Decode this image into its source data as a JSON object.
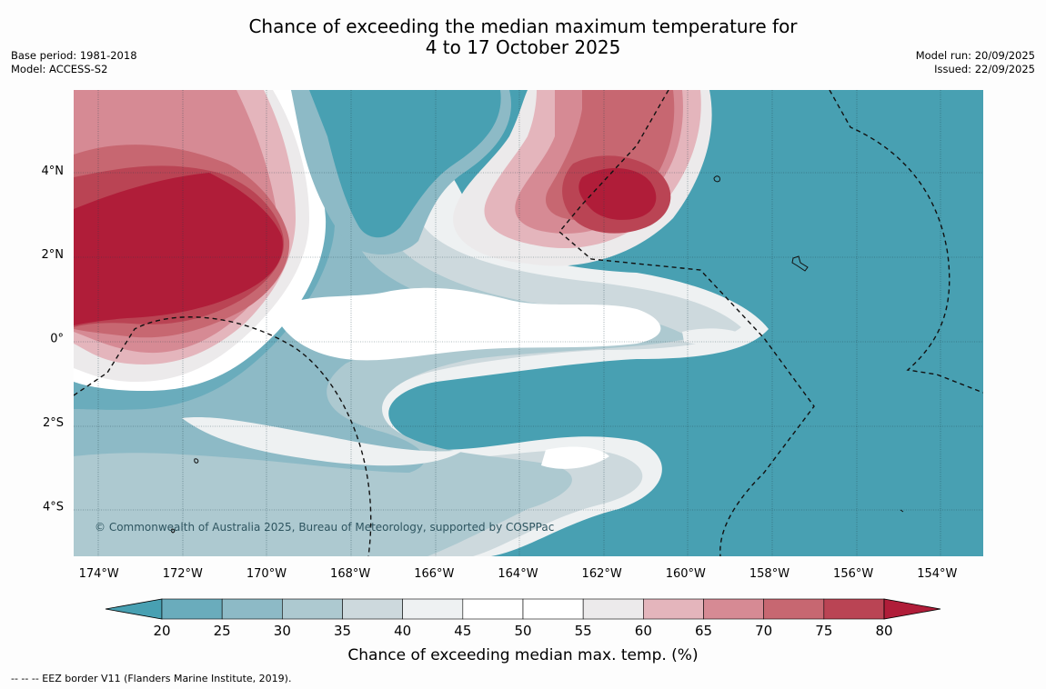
{
  "title": {
    "line1": "Chance of exceeding the median maximum temperature for",
    "line2": "4 to 17 October 2025"
  },
  "meta_left": {
    "base_period": "Base period: 1981-2018",
    "model": "Model: ACCESS-S2"
  },
  "meta_right": {
    "model_run": "Model run: 20/09/2025",
    "issued": "Issued: 22/09/2025"
  },
  "copyright": "© Commonwealth of Australia 2025, Bureau of Meteorology, supported by COSPPac",
  "colorbar": {
    "title": "Chance of exceeding median max. temp. (%)",
    "ticks": [
      "20",
      "25",
      "30",
      "35",
      "40",
      "45",
      "50",
      "55",
      "60",
      "65",
      "70",
      "75",
      "80"
    ],
    "colors": [
      "#48a0b2",
      "#6aacbc",
      "#8dbac6",
      "#adc9d0",
      "#cdd9dd",
      "#eef1f2",
      "#ffffff",
      "#ffffff",
      "#eceaeb",
      "#e4b5bc",
      "#d68a94",
      "#c76771",
      "#ba4454",
      "#b01d39"
    ]
  },
  "chart_data": {
    "type": "heatmap",
    "title": "Chance of exceeding the median maximum temperature for 4 to 17 October 2025",
    "variable": "Chance of exceeding median max. temp. (%)",
    "levels": [
      20,
      25,
      30,
      35,
      40,
      45,
      50,
      55,
      60,
      65,
      70,
      75,
      80
    ],
    "lon_range": [
      -174.6,
      -152.9
    ],
    "lat_range": [
      -5.2,
      5.9
    ],
    "lon_ticks": [
      {
        "value": -174,
        "label": "174°W"
      },
      {
        "value": -172,
        "label": "172°W"
      },
      {
        "value": -170,
        "label": "170°W"
      },
      {
        "value": -168,
        "label": "168°W"
      },
      {
        "value": -166,
        "label": "166°W"
      },
      {
        "value": -164,
        "label": "164°W"
      },
      {
        "value": -162,
        "label": "162°W"
      },
      {
        "value": -160,
        "label": "160°W"
      },
      {
        "value": -158,
        "label": "158°W"
      },
      {
        "value": -156,
        "label": "156°W"
      },
      {
        "value": -154,
        "label": "154°W"
      }
    ],
    "lat_ticks": [
      {
        "value": 4,
        "label": "4°N"
      },
      {
        "value": 2,
        "label": "2°N"
      },
      {
        "value": 0,
        "label": "0°"
      },
      {
        "value": -2,
        "label": "2°S"
      },
      {
        "value": -4,
        "label": "4°S"
      }
    ],
    "regions": [
      {
        "name": "west-warm-core",
        "level": 80,
        "lon": -172.5,
        "lat": 1.8
      },
      {
        "name": "northeast-warm-core",
        "level": 80,
        "lon": -161.6,
        "lat": 3.6
      },
      {
        "name": "north-cool-pocket",
        "level": 20,
        "lon": -166.5,
        "lat": 4.2
      },
      {
        "name": "southern-cool-band",
        "level": 20,
        "lon": -162.0,
        "lat": -1.8
      },
      {
        "name": "eastern-cool-region",
        "level": 20,
        "lon": -156.0,
        "lat": 1.0
      }
    ]
  },
  "footnote": "-- -- -- EEZ border V11 (Flanders Marine Institute, 2019)."
}
